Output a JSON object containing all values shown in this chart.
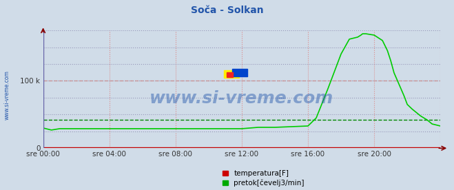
{
  "title": "Soča - Solkan",
  "bg_color": "#d0dce8",
  "plot_bg_color": "#d0dce8",
  "grid_color_v": "#dd8888",
  "grid_color_h": "#9999bb",
  "x_ticks": [
    0,
    4,
    8,
    12,
    16,
    20,
    24
  ],
  "x_tick_labels": [
    "sre 00:00",
    "sre 04:00",
    "sre 08:00",
    "sre 12:00",
    "sre 16:00",
    "sre 20:00",
    ""
  ],
  "ylim": [
    0,
    175000
  ],
  "y_ticks": [
    0,
    100000
  ],
  "y_tick_labels": [
    "0",
    "100 k"
  ],
  "temp_color": "#cc0000",
  "flow_color": "#00cc00",
  "avg_flow_color": "#008800",
  "avg_temp_color": "#cc8888",
  "watermark": "www.si-vreme.com",
  "watermark_color": "#2255aa",
  "watermark_fontsize": 18,
  "sidebar_text": "www.si-vreme.com",
  "sidebar_color": "#2255aa",
  "legend_temp_label": "temperatura[F]",
  "legend_flow_label": "pretok[čevelj3/min]",
  "avg_flow_value": 42000,
  "avg_temp_value": 100000,
  "temp_data_x": [
    0,
    24
  ],
  "temp_data_y": [
    1500,
    1500
  ],
  "flow_data_x": [
    0,
    0.5,
    1.0,
    12.0,
    12.5,
    13.0,
    14.0,
    15.0,
    16.0,
    16.5,
    17.2,
    18.0,
    18.5,
    19.0,
    19.2,
    19.3,
    19.5,
    20.0,
    20.5,
    20.8,
    21.0,
    21.2,
    21.5,
    21.8,
    22.0,
    22.3,
    22.8,
    23.2,
    23.5,
    24.0
  ],
  "flow_data_y": [
    30000,
    27000,
    29000,
    29000,
    30000,
    31000,
    31000,
    32000,
    33000,
    45000,
    88000,
    140000,
    162000,
    165000,
    168000,
    170000,
    170000,
    168000,
    160000,
    145000,
    130000,
    112000,
    95000,
    78000,
    65000,
    58000,
    48000,
    42000,
    36000,
    33000
  ],
  "h_gridlines": [
    0,
    25000,
    50000,
    75000,
    100000,
    125000,
    150000,
    175000
  ],
  "logo_colors": [
    "#ffee00",
    "#0044cc",
    "#ee2222"
  ],
  "axes_left_color": "#6666aa",
  "axes_bottom_color": "#990000",
  "arrow_color": "#880000"
}
